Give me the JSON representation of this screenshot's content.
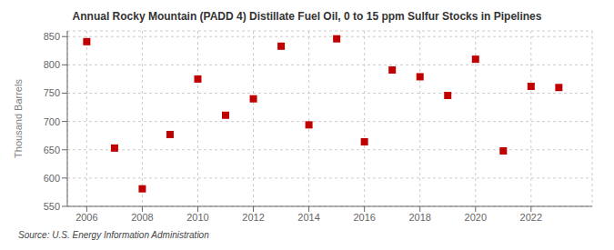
{
  "chart_data": {
    "type": "scatter",
    "title": "Annual Rocky Mountain (PADD 4) Distillate Fuel Oil, 0 to 15 ppm Sulfur Stocks in Pipelines",
    "ylabel": "Thousand Barrels",
    "annotation": "Source: U.S. Energy Information Administration",
    "x": [
      2006,
      2007,
      2008,
      2009,
      2010,
      2011,
      2012,
      2013,
      2014,
      2015,
      2016,
      2017,
      2018,
      2019,
      2020,
      2021,
      2022,
      2023
    ],
    "values": [
      841,
      653,
      581,
      677,
      775,
      711,
      740,
      833,
      694,
      846,
      664,
      791,
      779,
      746,
      810,
      648,
      762,
      760
    ],
    "color": "#c00000",
    "marker": "square",
    "xlim": [
      2005.3,
      2024.2
    ],
    "ylim": [
      550,
      860
    ],
    "xticks": [
      2006,
      2008,
      2010,
      2012,
      2014,
      2016,
      2018,
      2020,
      2022
    ],
    "yticks": [
      550,
      600,
      650,
      700,
      750,
      800,
      850
    ],
    "grid": true
  }
}
